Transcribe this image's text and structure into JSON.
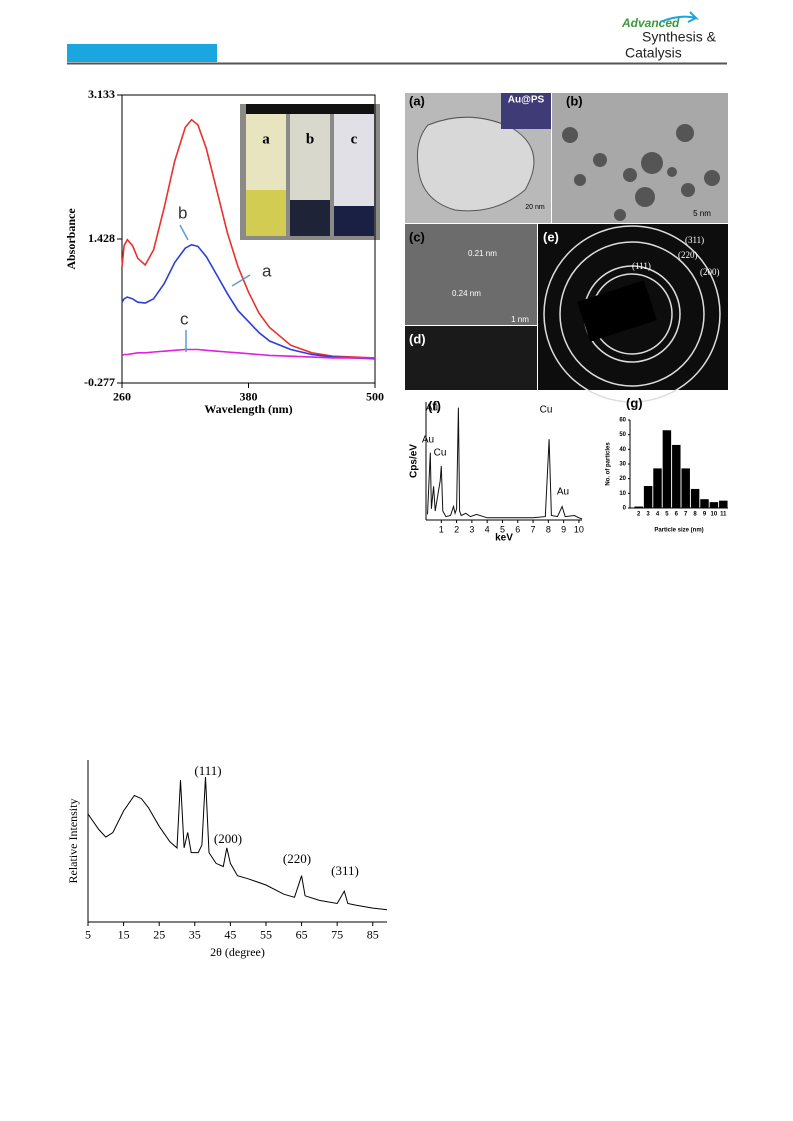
{
  "header": {
    "logo_line1": "Advanced",
    "logo_line2": "Synthesis &",
    "logo_line3": "Catalysis"
  },
  "figure1": {
    "vial_labels": [
      "a",
      "b",
      "c"
    ]
  },
  "figure2": {
    "panels": [
      "(a)",
      "(b)",
      "(c)",
      "(d)",
      "(e)"
    ],
    "inset_label": "Au@PS",
    "scale_a": "20 nm",
    "scale_b": "5 nm",
    "scale_c": "1 nm",
    "spacings": [
      "0.21 nm",
      "0.24 nm"
    ],
    "rings": [
      "(311)",
      "(220)",
      "(111)",
      "(200)"
    ]
  },
  "chart_data": [
    {
      "type": "line",
      "xlabel": "Wavelength (nm)",
      "ylabel": "Absorbance",
      "x": [
        260,
        262,
        265,
        270,
        275,
        282,
        290,
        300,
        310,
        320,
        326,
        332,
        340,
        350,
        360,
        370,
        380,
        390,
        400,
        420,
        440,
        460,
        480,
        500
      ],
      "series": [
        {
          "name": "a",
          "color": "#e8322e",
          "values": [
            1.1,
            1.35,
            1.42,
            1.35,
            1.2,
            1.12,
            1.3,
            1.8,
            2.35,
            2.75,
            2.84,
            2.78,
            2.5,
            2.0,
            1.5,
            1.1,
            0.8,
            0.55,
            0.38,
            0.17,
            0.08,
            0.04,
            0.03,
            0.02
          ]
        },
        {
          "name": "b",
          "color": "#2b3fd6",
          "values": [
            0.68,
            0.72,
            0.74,
            0.72,
            0.68,
            0.67,
            0.72,
            0.9,
            1.15,
            1.32,
            1.36,
            1.34,
            1.22,
            1.0,
            0.78,
            0.58,
            0.45,
            0.32,
            0.22,
            0.12,
            0.06,
            0.03,
            0.02,
            0.01
          ]
        },
        {
          "name": "c",
          "color": "#e020e0",
          "values": [
            0.05,
            0.06,
            0.06,
            0.07,
            0.08,
            0.08,
            0.09,
            0.1,
            0.11,
            0.12,
            0.12,
            0.12,
            0.11,
            0.1,
            0.09,
            0.08,
            0.07,
            0.06,
            0.05,
            0.04,
            0.03,
            0.02,
            0.02,
            0.02
          ]
        }
      ],
      "xlim": [
        260,
        500
      ],
      "xticks": [
        260,
        380,
        500
      ],
      "ylim": [
        -0.277,
        3.133
      ],
      "yticks": [
        -0.277,
        1.428,
        3.133
      ]
    },
    {
      "type": "line",
      "panel_label": "(f)",
      "xlabel": "keV",
      "ylabel": "Cps/eV",
      "x": [
        0.1,
        0.28,
        0.35,
        0.5,
        0.6,
        0.93,
        1.0,
        1.1,
        1.3,
        1.6,
        1.8,
        1.9,
        2.0,
        2.12,
        2.2,
        2.3,
        2.6,
        2.9,
        3.3,
        4,
        5,
        6,
        7,
        7.8,
        8.05,
        8.2,
        8.6,
        8.9,
        9.1,
        9.7,
        10,
        10.2
      ],
      "series": [
        {
          "name": "EDS",
          "color": "#111",
          "values": [
            5,
            60,
            10,
            30,
            8,
            35,
            48,
            8,
            3,
            4,
            12,
            6,
            10,
            100,
            8,
            4,
            6,
            3,
            5,
            2,
            2,
            2,
            2,
            3,
            72,
            4,
            3,
            12,
            3,
            4,
            2,
            1
          ]
        }
      ],
      "annotations": [
        "Au",
        "Au",
        "Cu",
        "Cu",
        "Au"
      ],
      "xlim": [
        0,
        10.2
      ],
      "xticks": [
        1,
        2,
        3,
        4,
        5,
        6,
        7,
        8,
        9,
        10
      ],
      "ylim": [
        0,
        105
      ]
    },
    {
      "type": "bar",
      "panel_label": "(g)",
      "xlabel": "Particle size (nm)",
      "ylabel": "No. of particles",
      "categories": [
        "2",
        "3",
        "4",
        "5",
        "6",
        "7",
        "8",
        "9",
        "10",
        "11"
      ],
      "values": [
        1,
        15,
        27,
        53,
        43,
        27,
        13,
        6,
        4,
        5
      ],
      "color": "#000",
      "ylim": [
        0,
        60
      ],
      "yticks": [
        0,
        10,
        20,
        30,
        40,
        50,
        60
      ]
    },
    {
      "type": "line",
      "xlabel": "2θ (degree)",
      "ylabel": "Relative Intensity",
      "x": [
        5,
        8,
        10,
        12,
        15,
        18,
        20,
        22,
        25,
        28,
        30,
        31,
        32,
        33,
        34,
        36,
        37,
        38,
        39,
        41,
        43,
        44,
        45,
        47,
        50,
        55,
        60,
        63,
        65,
        66,
        70,
        75,
        77,
        78,
        80,
        85,
        89
      ],
      "series": [
        {
          "name": "XRD",
          "color": "#000",
          "values": [
            70,
            60,
            55,
            58,
            72,
            82,
            80,
            74,
            62,
            52,
            48,
            92,
            48,
            58,
            45,
            45,
            50,
            94,
            45,
            38,
            36,
            48,
            38,
            30,
            28,
            24,
            18,
            16,
            30,
            17,
            14,
            12,
            20,
            12,
            11,
            9,
            8
          ]
        }
      ],
      "annotations": [
        "(111)",
        "(200)",
        "(220)",
        "(311)"
      ],
      "xlim": [
        5,
        89
      ],
      "xticks": [
        5,
        15,
        25,
        35,
        45,
        55,
        65,
        75,
        85
      ],
      "ylim": [
        0,
        105
      ]
    }
  ]
}
